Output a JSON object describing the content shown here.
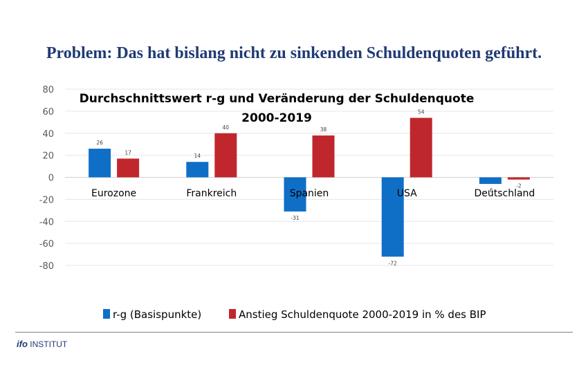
{
  "page": {
    "title": "Problem: Das hat bislang nicht zu sinkenden Schuldenquoten geführt.",
    "logo_brand": "ifo",
    "logo_suffix": "INSTITUT"
  },
  "chart_data": {
    "type": "bar",
    "title_line1": "Durchschnittswert r-g und Veränderung der Schuldenquote",
    "title_line2": "2000-2019",
    "categories": [
      "Eurozone",
      "Frankreich",
      "Spanien",
      "USA",
      "Deutschland"
    ],
    "series": [
      {
        "name": "r-g (Basispunkte)",
        "color": "#0f6fc6",
        "values": [
          26,
          14,
          -31,
          -72,
          -6
        ],
        "labels": [
          "26",
          "14",
          "-31",
          "-72",
          "-6"
        ]
      },
      {
        "name": "Anstieg Schuldenquote 2000-2019 in % des BIP",
        "color": "#c0272d",
        "values": [
          17,
          40,
          38,
          54,
          -2
        ],
        "labels": [
          "17",
          "40",
          "38",
          "54",
          "-2"
        ]
      }
    ],
    "ylim": [
      -80,
      80
    ],
    "yticks": [
      80,
      60,
      40,
      20,
      0,
      -20,
      -40,
      -60,
      -80
    ],
    "grid": true,
    "legend_position": "bottom"
  }
}
